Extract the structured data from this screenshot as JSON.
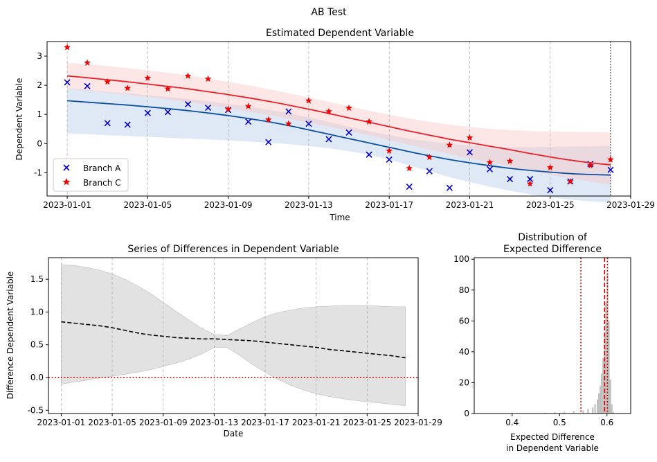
{
  "suptitle": "AB Test",
  "chart_data": [
    {
      "type": "scatter",
      "title": "Estimated Dependent Variable",
      "xlabel": "Time",
      "ylabel": "Dependent Variable",
      "x_type": "date",
      "xlim": [
        "2022-12-31",
        "2023-01-29"
      ],
      "ylim": [
        -1.8,
        3.5
      ],
      "x_tick_labels": [
        "2023-01-01",
        "2023-01-05",
        "2023-01-09",
        "2023-01-13",
        "2023-01-17",
        "2023-01-21",
        "2023-01-25",
        "2023-01-29"
      ],
      "y_tick_labels": [
        "3",
        "2",
        "1",
        "0",
        "-1"
      ],
      "y_ticks": [
        3,
        2,
        1,
        0,
        -1
      ],
      "vertical_marker": "2023-01-28",
      "grid": "x-dashed",
      "legend_position": "lower-left",
      "legend": [
        "Branch A",
        "Branch C"
      ],
      "x": [
        "2023-01-01",
        "2023-01-02",
        "2023-01-03",
        "2023-01-04",
        "2023-01-05",
        "2023-01-06",
        "2023-01-07",
        "2023-01-08",
        "2023-01-09",
        "2023-01-10",
        "2023-01-11",
        "2023-01-12",
        "2023-01-13",
        "2023-01-14",
        "2023-01-15",
        "2023-01-16",
        "2023-01-17",
        "2023-01-18",
        "2023-01-19",
        "2023-01-20",
        "2023-01-21",
        "2023-01-22",
        "2023-01-23",
        "2023-01-24",
        "2023-01-25",
        "2023-01-26",
        "2023-01-27",
        "2023-01-28"
      ],
      "series": [
        {
          "name": "Branch A",
          "marker": "x",
          "color": "#0000cc",
          "values": [
            2.1,
            1.97,
            0.7,
            0.65,
            1.05,
            1.08,
            1.35,
            1.23,
            1.15,
            0.75,
            0.05,
            1.1,
            0.68,
            0.15,
            0.38,
            -0.38,
            -0.55,
            -1.48,
            -0.95,
            -1.52,
            -0.3,
            -0.88,
            -1.22,
            -1.22,
            -1.6,
            -1.3,
            -0.7,
            -0.9
          ],
          "trend": [
            1.47,
            1.42,
            1.37,
            1.32,
            1.26,
            1.2,
            1.13,
            1.05,
            0.96,
            0.86,
            0.75,
            0.62,
            0.47,
            0.32,
            0.17,
            0.02,
            -0.13,
            -0.28,
            -0.42,
            -0.55,
            -0.66,
            -0.76,
            -0.85,
            -0.92,
            -0.98,
            -1.03,
            -1.06,
            -1.08
          ],
          "band_upper": [
            1.9,
            1.84,
            1.78,
            1.72,
            1.66,
            1.6,
            1.53,
            1.45,
            1.36,
            1.27,
            1.16,
            1.04,
            0.9,
            0.74,
            0.58,
            0.43,
            0.29,
            0.17,
            0.07,
            -0.01,
            -0.07,
            -0.1,
            -0.12,
            -0.12,
            -0.11,
            -0.1,
            -0.09,
            -0.08
          ],
          "band_lower": [
            0.35,
            0.32,
            0.29,
            0.26,
            0.23,
            0.2,
            0.17,
            0.14,
            0.11,
            0.07,
            0.03,
            -0.02,
            -0.08,
            -0.16,
            -0.26,
            -0.38,
            -0.55,
            -0.75,
            -0.95,
            -1.15,
            -1.32,
            -1.48,
            -1.62,
            -1.74,
            -1.84,
            -1.92,
            -1.98,
            -2.02
          ],
          "band_color": "#b8cce8"
        },
        {
          "name": "Branch C",
          "marker": "star",
          "color": "#ee0000",
          "values": [
            3.3,
            2.77,
            2.12,
            1.9,
            2.25,
            1.88,
            2.32,
            2.22,
            1.18,
            1.28,
            0.82,
            0.68,
            1.47,
            1.1,
            1.22,
            0.75,
            -0.25,
            -0.85,
            -0.47,
            -0.05,
            0.2,
            -0.65,
            -0.6,
            -1.38,
            -0.82,
            -1.3,
            -0.75,
            -0.55
          ],
          "trend": [
            2.32,
            2.26,
            2.19,
            2.12,
            2.04,
            1.96,
            1.88,
            1.78,
            1.68,
            1.57,
            1.45,
            1.32,
            1.18,
            1.03,
            0.88,
            0.73,
            0.58,
            0.43,
            0.29,
            0.15,
            0.03,
            -0.09,
            -0.21,
            -0.34,
            -0.46,
            -0.57,
            -0.66,
            -0.73
          ],
          "band_upper": [
            2.78,
            2.72,
            2.66,
            2.59,
            2.51,
            2.43,
            2.34,
            2.24,
            2.12,
            2.0,
            1.87,
            1.73,
            1.58,
            1.43,
            1.28,
            1.13,
            0.99,
            0.86,
            0.75,
            0.65,
            0.57,
            0.51,
            0.46,
            0.43,
            0.41,
            0.4,
            0.39,
            0.38
          ],
          "band_lower": [
            1.88,
            1.82,
            1.75,
            1.68,
            1.6,
            1.51,
            1.42,
            1.32,
            1.21,
            1.1,
            0.98,
            0.85,
            0.72,
            0.58,
            0.43,
            0.28,
            0.12,
            -0.04,
            -0.2,
            -0.36,
            -0.51,
            -0.65,
            -0.79,
            -0.93,
            -1.06,
            -1.18,
            -1.3,
            -1.41
          ],
          "band_color": "#fbc7c7"
        }
      ]
    },
    {
      "type": "line",
      "title": "Series of Differences in Dependent Variable",
      "xlabel": "Date",
      "ylabel": "Difference Dependent Variable",
      "x_type": "date",
      "xlim": [
        "2022-12-31",
        "2023-01-29"
      ],
      "ylim": [
        -0.55,
        1.83
      ],
      "x_tick_labels": [
        "2023-01-01",
        "2023-01-05",
        "2023-01-09",
        "2023-01-13",
        "2023-01-17",
        "2023-01-21",
        "2023-01-25",
        "2023-01-29"
      ],
      "y_tick_labels": [
        "1.5",
        "1.0",
        "0.5",
        "0.0",
        "-0.5"
      ],
      "y_ticks": [
        1.5,
        1.0,
        0.5,
        0.0,
        -0.5
      ],
      "reference_line": 0.0,
      "grid": "x-dashed",
      "x": [
        "2023-01-01",
        "2023-01-02",
        "2023-01-03",
        "2023-01-04",
        "2023-01-05",
        "2023-01-06",
        "2023-01-07",
        "2023-01-08",
        "2023-01-09",
        "2023-01-10",
        "2023-01-11",
        "2023-01-12",
        "2023-01-13",
        "2023-01-14",
        "2023-01-15",
        "2023-01-16",
        "2023-01-17",
        "2023-01-18",
        "2023-01-19",
        "2023-01-20",
        "2023-01-21",
        "2023-01-22",
        "2023-01-23",
        "2023-01-24",
        "2023-01-25",
        "2023-01-26",
        "2023-01-27",
        "2023-01-28"
      ],
      "series": [
        {
          "values": [
            0.85,
            0.83,
            0.81,
            0.79,
            0.76,
            0.72,
            0.68,
            0.65,
            0.63,
            0.61,
            0.6,
            0.59,
            0.59,
            0.58,
            0.57,
            0.56,
            0.54,
            0.52,
            0.5,
            0.48,
            0.46,
            0.43,
            0.41,
            0.39,
            0.37,
            0.35,
            0.33,
            0.3
          ],
          "band_upper": [
            1.72,
            1.71,
            1.68,
            1.64,
            1.58,
            1.5,
            1.4,
            1.28,
            1.15,
            1.01,
            0.88,
            0.75,
            0.66,
            0.64,
            0.74,
            0.84,
            0.93,
            0.99,
            1.03,
            1.06,
            1.08,
            1.09,
            1.1,
            1.1,
            1.1,
            1.09,
            1.08,
            1.08
          ],
          "band_lower": [
            -0.1,
            -0.07,
            -0.04,
            -0.01,
            0.02,
            0.05,
            0.08,
            0.12,
            0.17,
            0.22,
            0.28,
            0.36,
            0.46,
            0.46,
            0.34,
            0.2,
            0.08,
            -0.03,
            -0.12,
            -0.19,
            -0.25,
            -0.29,
            -0.32,
            -0.35,
            -0.37,
            -0.39,
            -0.41,
            -0.43
          ],
          "color": "#000000",
          "band_color": "#d3d3d3"
        }
      ]
    },
    {
      "type": "histogram",
      "title": "Distribution of\nExpected Difference",
      "title_lines": [
        "Distribution of",
        "Expected Difference"
      ],
      "xlabel_lines": [
        "Expected Difference",
        "in Dependent Variable"
      ],
      "xlim": [
        0.32,
        0.65
      ],
      "ylim": [
        0,
        101
      ],
      "x_tick_labels": [
        "0.4",
        "0.5",
        "0.6"
      ],
      "x_ticks": [
        0.4,
        0.5,
        0.6
      ],
      "y_tick_labels": [
        "100",
        "80",
        "60",
        "40",
        "20",
        "0"
      ],
      "y_ticks": [
        100,
        80,
        60,
        40,
        20,
        0
      ],
      "bar_color": "#c0c0c0",
      "bins": [
        {
          "x": 0.45,
          "count": 0.3
        },
        {
          "x": 0.47,
          "count": 0.5
        },
        {
          "x": 0.49,
          "count": 0.8
        },
        {
          "x": 0.51,
          "count": 1
        },
        {
          "x": 0.53,
          "count": 1.5
        },
        {
          "x": 0.55,
          "count": 2
        },
        {
          "x": 0.56,
          "count": 3
        },
        {
          "x": 0.57,
          "count": 4
        },
        {
          "x": 0.575,
          "count": 6
        },
        {
          "x": 0.58,
          "count": 9
        },
        {
          "x": 0.583,
          "count": 13
        },
        {
          "x": 0.586,
          "count": 18
        },
        {
          "x": 0.589,
          "count": 26
        },
        {
          "x": 0.592,
          "count": 36
        },
        {
          "x": 0.595,
          "count": 52
        },
        {
          "x": 0.598,
          "count": 72
        },
        {
          "x": 0.601,
          "count": 90
        },
        {
          "x": 0.604,
          "count": 60
        },
        {
          "x": 0.607,
          "count": 22
        },
        {
          "x": 0.61,
          "count": 6
        },
        {
          "x": 0.613,
          "count": 1
        }
      ],
      "vlines": [
        {
          "x": 0.545,
          "style": "dotted",
          "color": "#cc0000"
        },
        {
          "x": 0.595,
          "style": "dashed",
          "color": "#cc0000"
        },
        {
          "x": 0.601,
          "style": "dotted",
          "color": "#cc0000"
        }
      ]
    }
  ]
}
